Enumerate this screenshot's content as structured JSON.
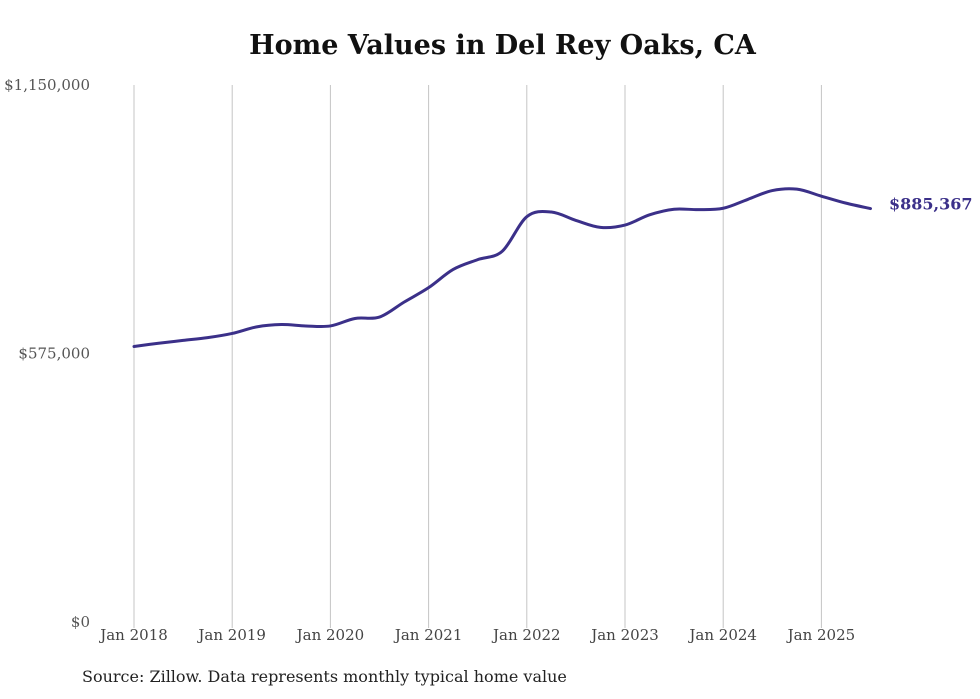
{
  "chart_data": {
    "type": "line",
    "title": "Home Values in Del Rey Oaks, CA",
    "source": "Source: Zillow. Data represents monthly typical home value",
    "ylim": [
      0,
      1150000
    ],
    "y_ticks": [
      {
        "value": 0,
        "label": "$0"
      },
      {
        "value": 575000,
        "label": "$575,000"
      },
      {
        "value": 1150000,
        "label": "$1,150,000"
      }
    ],
    "x_ticks": [
      {
        "value": "2018-01",
        "label": "Jan 2018"
      },
      {
        "value": "2019-01",
        "label": "Jan 2019"
      },
      {
        "value": "2020-01",
        "label": "Jan 2020"
      },
      {
        "value": "2021-01",
        "label": "Jan 2021"
      },
      {
        "value": "2022-01",
        "label": "Jan 2022"
      },
      {
        "value": "2023-01",
        "label": "Jan 2023"
      },
      {
        "value": "2024-01",
        "label": "Jan 2024"
      },
      {
        "value": "2025-01",
        "label": "Jan 2025"
      }
    ],
    "grid": "vertical",
    "line_color": "#3b3089",
    "end_label": "$885,367",
    "series": [
      {
        "x": [
          "2018-01",
          "2018-04",
          "2018-07",
          "2018-10",
          "2019-01",
          "2019-04",
          "2019-07",
          "2019-10",
          "2020-01",
          "2020-04",
          "2020-07",
          "2020-10",
          "2021-01",
          "2021-04",
          "2021-07",
          "2021-10",
          "2022-01",
          "2022-04",
          "2022-07",
          "2022-10",
          "2023-01",
          "2023-04",
          "2023-07",
          "2023-10",
          "2024-01",
          "2024-04",
          "2024-07",
          "2024-10",
          "2025-01",
          "2025-04",
          "2025-07"
        ],
        "y": [
          590000,
          597000,
          603000,
          609000,
          618000,
          632000,
          637000,
          634000,
          634000,
          650000,
          653000,
          685000,
          716000,
          755000,
          776000,
          794000,
          868000,
          878000,
          860000,
          845000,
          850000,
          872000,
          884000,
          883000,
          886000,
          905000,
          924000,
          927000,
          912000,
          897000,
          885367
        ]
      }
    ]
  }
}
